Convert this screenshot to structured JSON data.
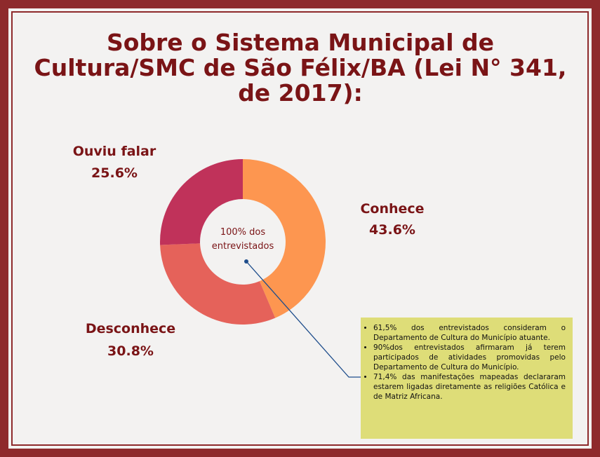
{
  "chart_data": {
    "type": "pie",
    "donut": true,
    "title": "Sobre o Sistema Municipal de Cultura/SMC de São Félix/BA (Lei N° 341, de 2017):",
    "title_lines": [
      "Sobre o Sistema Municipal de",
      "Cultura/SMC de São Félix/BA (Lei N° 341,",
      "de 2017):"
    ],
    "categories": [
      "Conhece",
      "Desconhece",
      "Ouviu falar"
    ],
    "values": [
      43.6,
      30.8,
      25.6
    ],
    "value_labels": [
      "43.6%",
      "30.8%",
      "25.6%"
    ],
    "colors": [
      "#fd9650",
      "#e5625a",
      "#c0325a"
    ],
    "center_text": [
      "100% dos",
      "entrevistados"
    ],
    "notes": [
      "61,5% dos entrevistados consideram o Departamento de Cultura do Município atuante.",
      "90%dos entrevistados afirmaram já terem participados de atividades promovidas pelo Departamento de Cultura do Município.",
      "71,4% das manifestações mapeadas declararam estarem ligadas diretamente as religiões Católica e de Matriz Africana."
    ]
  }
}
